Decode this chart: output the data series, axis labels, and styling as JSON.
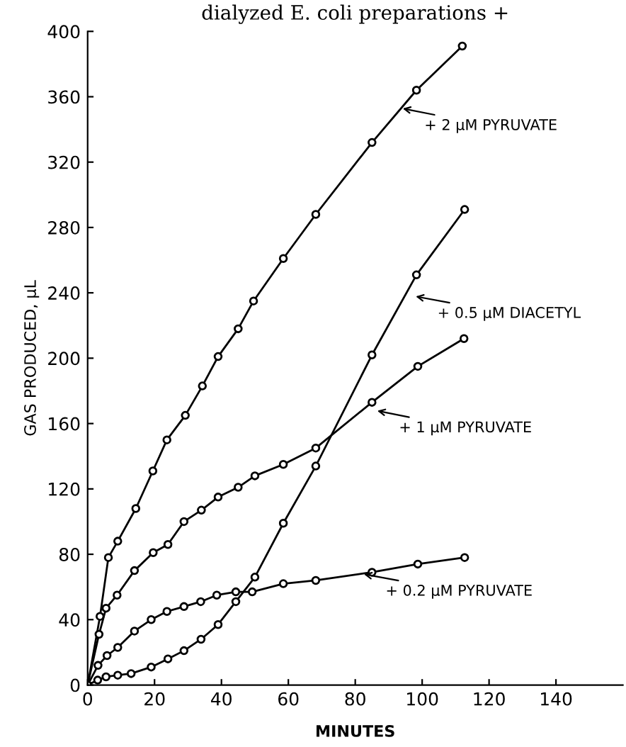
{
  "chart_data": {
    "type": "line",
    "title": "dialyzed E. coli preparations +",
    "xlabel": "MINUTES",
    "ylabel": "GAS PRODUCED, µL",
    "xlim": [
      0,
      160
    ],
    "ylim": [
      0,
      400
    ],
    "xticks": [
      0,
      20,
      40,
      60,
      80,
      100,
      120,
      140
    ],
    "yticks": [
      0,
      40,
      80,
      120,
      160,
      200,
      240,
      280,
      320,
      360,
      400
    ],
    "grid": false,
    "legend": false,
    "marker": "circle",
    "line_style": "solid",
    "series": [
      {
        "color": "#000000",
        "x": [
          0,
          3.7,
          6.2,
          9,
          14.4,
          19.5,
          23.7,
          29.2,
          34.3,
          39,
          45,
          49.6,
          58.5,
          68.2,
          85,
          98.3,
          112
        ],
        "values": [
          0,
          42,
          78,
          88,
          108,
          131,
          150,
          165,
          183,
          201,
          218,
          235,
          261,
          288,
          332,
          364,
          391
        ]
      },
      {
        "color": "#000000",
        "x": [
          0,
          3.4,
          5.5,
          8.8,
          14,
          19.6,
          24,
          28.8,
          34,
          39,
          45,
          50,
          58.5,
          68.2,
          85,
          98.7,
          112.5
        ],
        "values": [
          0,
          31,
          47,
          55,
          70,
          81,
          86,
          100,
          107,
          115,
          121,
          128,
          135,
          145,
          173,
          195,
          212
        ]
      },
      {
        "color": "#000000",
        "x": [
          0,
          3.1,
          5.8,
          9,
          14,
          19,
          23.7,
          28.8,
          33.8,
          38.6,
          44.3,
          49.2,
          58.5,
          68.2,
          85,
          98.7,
          112.7
        ],
        "values": [
          0,
          12,
          18,
          23,
          33,
          40,
          45,
          48,
          51,
          55,
          57,
          57,
          62,
          64,
          69,
          74,
          78
        ]
      },
      {
        "color": "#000000",
        "x": [
          0,
          3,
          5.5,
          9,
          13,
          19,
          24,
          28.8,
          33.9,
          39,
          44.3,
          50,
          58.5,
          68.2,
          85,
          98.3,
          112.7
        ],
        "values": [
          0,
          3,
          5,
          6,
          7,
          11,
          16,
          21,
          28,
          37,
          51,
          66,
          99,
          134,
          202,
          251,
          291
        ]
      }
    ],
    "annotations": [
      {
        "text": "+ 2 µM PYRUVATE",
        "x": 93.6,
        "y": 353
      },
      {
        "text": "+ 0.5 µM DIACETYL",
        "x": 97.5,
        "y": 238
      },
      {
        "text": "+ 1 µM PYRUVATE",
        "x": 86,
        "y": 168
      },
      {
        "text": "+ 0.2 µM PYRUVATE",
        "x": 82,
        "y": 68
      }
    ]
  }
}
